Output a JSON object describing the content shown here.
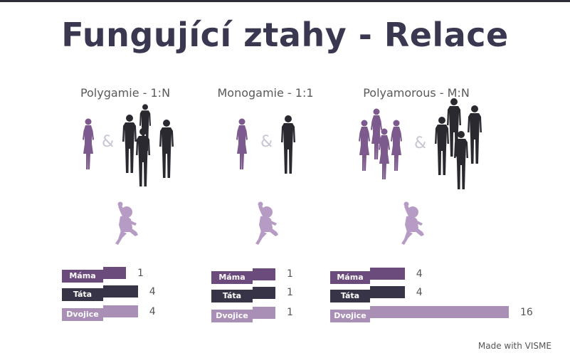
{
  "title": "Fungující ztahy - Relace",
  "ampersand": "&",
  "columns": [
    {
      "name": "Polygamie - 1:N",
      "mama_label": "Máma",
      "tata_label": "Táta",
      "dvojice_label": "Dvojice",
      "mama": 1,
      "tata": 4,
      "dvojice": 4
    },
    {
      "name": "Monogamie - 1:1",
      "mama_label": "Máma",
      "tata_label": "Táta",
      "dvojice_label": "Dvojice",
      "mama": 1,
      "tata": 1,
      "dvojice": 1
    },
    {
      "name": "Polyamorous - M:N",
      "mama_label": "Máma",
      "tata_label": "Táta",
      "dvojice_label": "Dvojice",
      "mama": 4,
      "tata": 4,
      "dvojice": 16
    }
  ],
  "colors": {
    "mama": "#6b4a7c",
    "tata": "#363446",
    "dvojice": "#a98fb6",
    "female": "#7d5a8d",
    "male": "#2a2930",
    "child": "#b69cc4"
  },
  "footer": "Made with VISME"
}
